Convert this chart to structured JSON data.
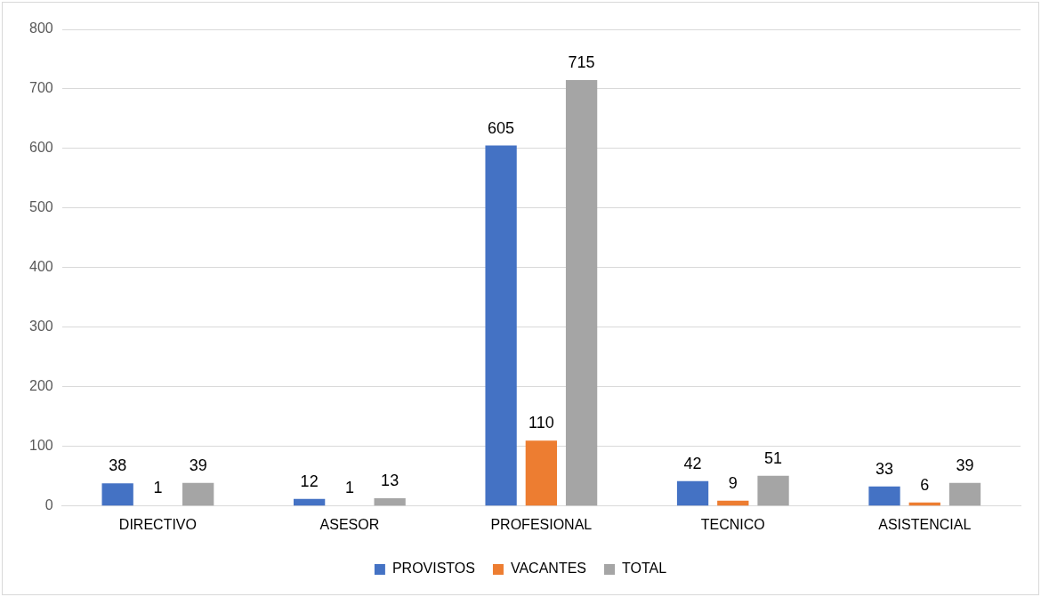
{
  "chart_data": {
    "type": "bar",
    "categories": [
      "DIRECTIVO",
      "ASESOR",
      "PROFESIONAL",
      "TECNICO",
      "ASISTENCIAL"
    ],
    "series": [
      {
        "name": "PROVISTOS",
        "color": "#4472c4",
        "values": [
          38,
          12,
          605,
          42,
          33
        ]
      },
      {
        "name": "VACANTES",
        "color": "#ed7d31",
        "values": [
          1,
          1,
          110,
          9,
          6
        ]
      },
      {
        "name": "TOTAL",
        "color": "#a5a5a5",
        "values": [
          39,
          13,
          715,
          51,
          39
        ]
      }
    ],
    "ylim": [
      0,
      800
    ],
    "yticks": [
      0,
      100,
      200,
      300,
      400,
      500,
      600,
      700,
      800
    ],
    "grid": "y",
    "legend": "bottom",
    "data_labels": true
  }
}
